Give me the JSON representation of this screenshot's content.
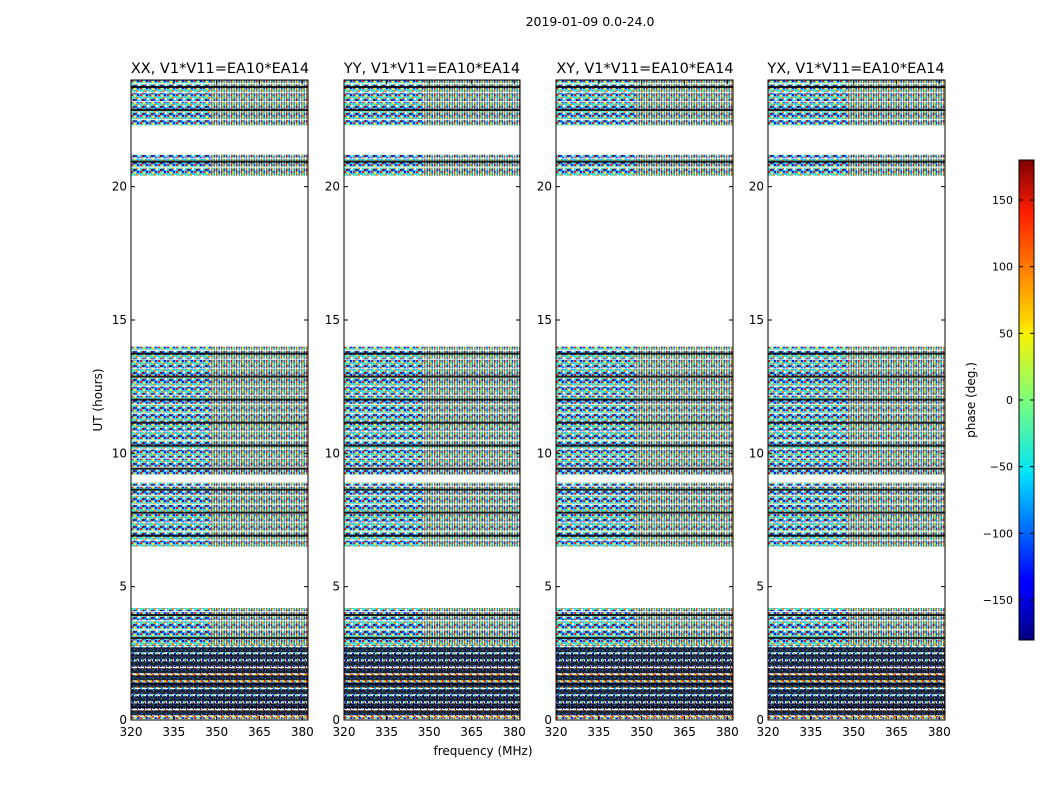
{
  "figure": {
    "title": "2019-01-09 0.0-24.0"
  },
  "chart_data": [
    {
      "type": "heatmap",
      "title": "XX, V1*V11=EA10*EA14",
      "xlabel": "frequency (MHz)",
      "ylabel": "UT (hours)",
      "xlim": [
        320,
        382
      ],
      "ylim": [
        0,
        24
      ],
      "x_ticks": [
        "320",
        "335",
        "350",
        "365",
        "380"
      ],
      "y_ticks": [
        "0",
        "5",
        "10",
        "15",
        "20"
      ],
      "value": "phase (deg.)",
      "value_range": [
        -180,
        180
      ]
    },
    {
      "type": "heatmap",
      "title": "YY, V1*V11=EA10*EA14",
      "xlabel": "",
      "ylabel": "",
      "xlim": [
        320,
        382
      ],
      "ylim": [
        0,
        24
      ],
      "x_ticks": [
        "320",
        "335",
        "350",
        "365",
        "380"
      ],
      "y_ticks": [
        "0",
        "5",
        "10",
        "15",
        "20"
      ],
      "value": "phase (deg.)",
      "value_range": [
        -180,
        180
      ]
    },
    {
      "type": "heatmap",
      "title": "XY, V1*V11=EA10*EA14",
      "xlabel": "",
      "ylabel": "",
      "xlim": [
        320,
        382
      ],
      "ylim": [
        0,
        24
      ],
      "x_ticks": [
        "320",
        "335",
        "350",
        "365",
        "380"
      ],
      "y_ticks": [
        "0",
        "5",
        "10",
        "15",
        "20"
      ],
      "value": "phase (deg.)",
      "value_range": [
        -180,
        180
      ]
    },
    {
      "type": "heatmap",
      "title": "YX, V1*V11=EA10*EA14",
      "xlabel": "",
      "ylabel": "",
      "xlim": [
        320,
        382
      ],
      "ylim": [
        0,
        24
      ],
      "x_ticks": [
        "320",
        "335",
        "350",
        "365",
        "380"
      ],
      "y_ticks": [
        "0",
        "5",
        "10",
        "15",
        "20"
      ],
      "value": "phase (deg.)",
      "value_range": [
        -180,
        180
      ]
    }
  ],
  "observed_ut_ranges_hours": [
    [
      0.0,
      4.2
    ],
    [
      6.5,
      8.9
    ],
    [
      9.2,
      14.0
    ],
    [
      20.4,
      21.2
    ],
    [
      22.3,
      24.0
    ]
  ],
  "colorbar": {
    "label": "phase (deg.)",
    "range": [
      -180,
      180
    ],
    "ticks": [
      "150",
      "100",
      "50",
      "0",
      "−50",
      "−100",
      "−150"
    ],
    "tick_values": [
      150,
      100,
      50,
      0,
      -50,
      -100,
      -150
    ],
    "colormap": "jet"
  }
}
